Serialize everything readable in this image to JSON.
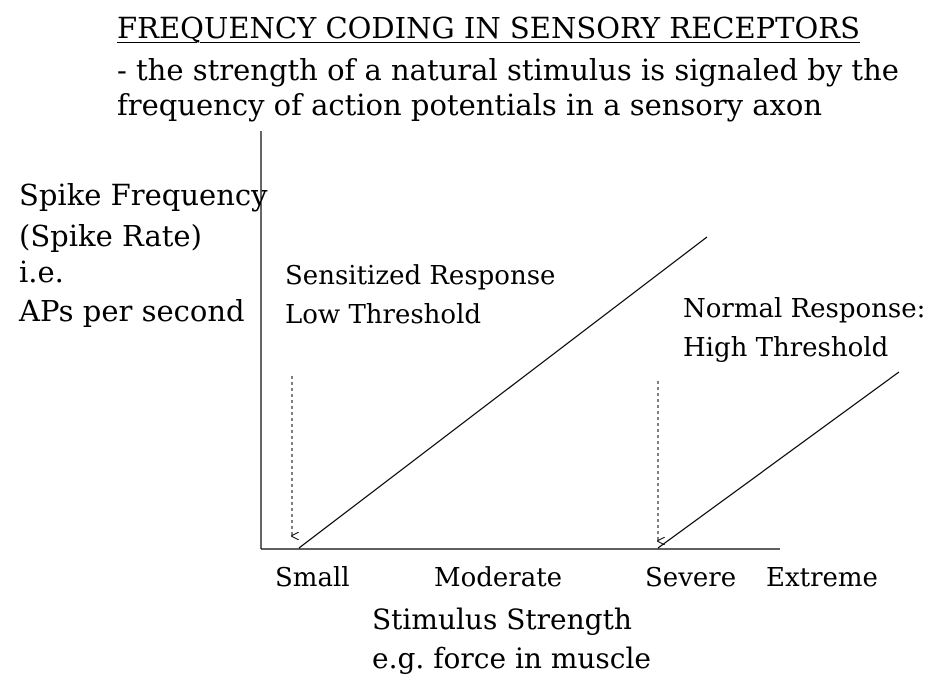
{
  "header": {
    "title": "FREQUENCY CODING IN SENSORY RECEPTORS",
    "subtitle_line1": "- the strength of a natural stimulus is signaled by the",
    "subtitle_line2": "frequency of action potentials in a sensory axon"
  },
  "y_axis": {
    "label_lines": [
      "Spike Frequency",
      "(Spike Rate)",
      "i.e.",
      "APs per second"
    ]
  },
  "x_axis": {
    "ticks": [
      "Small",
      "Moderate",
      "Severe",
      "Extreme"
    ],
    "label_lines": [
      "Stimulus Strength",
      "e.g. force in muscle"
    ]
  },
  "curves": [
    {
      "label_lines": [
        "Sensitized Response",
        "Low Threshold"
      ],
      "threshold": "Small",
      "arrow": "dashed-down"
    },
    {
      "label_lines": [
        "Normal Response:",
        "High Threshold"
      ],
      "threshold": "Severe",
      "arrow": "dashed-down"
    }
  ],
  "colors": {
    "background": "#ffffff",
    "ink": "#000000"
  }
}
